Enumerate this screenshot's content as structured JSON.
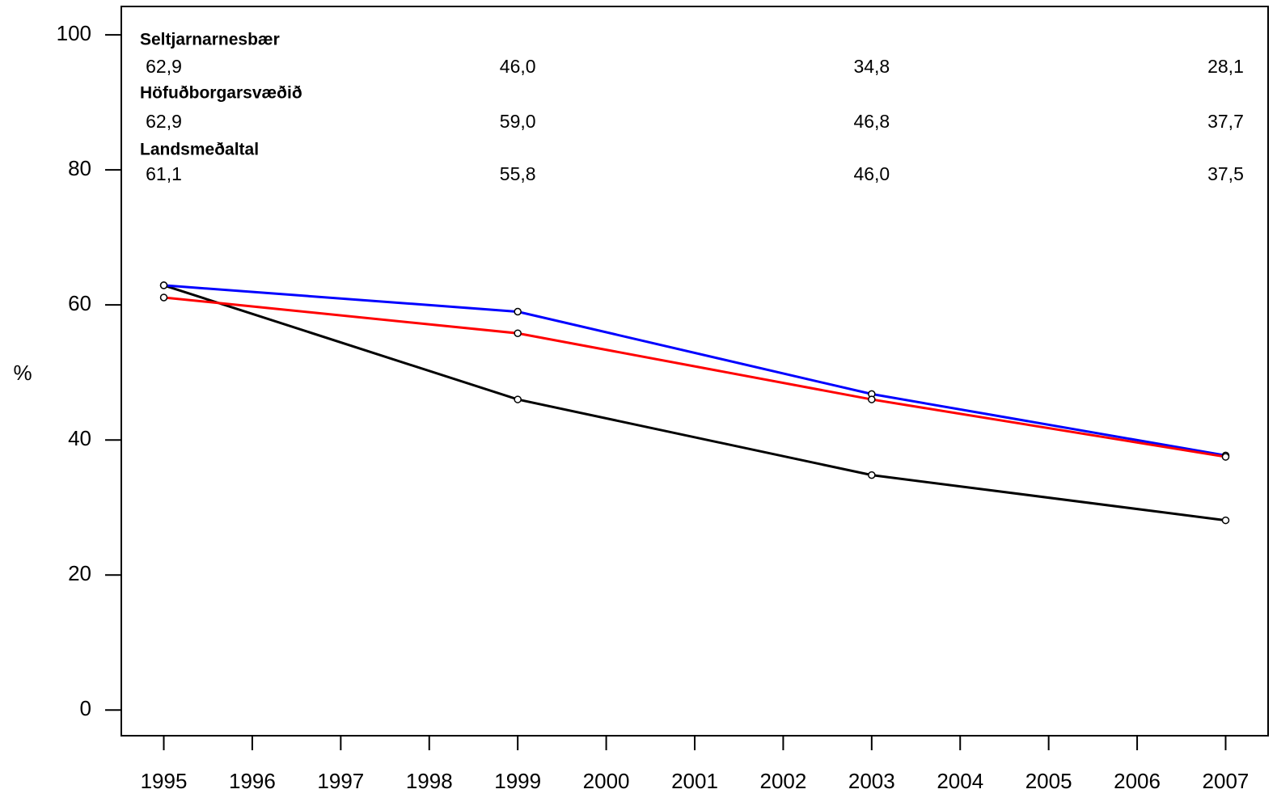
{
  "chart_data": {
    "type": "line",
    "y_label": "%",
    "x": [
      1995,
      1999,
      2003,
      2007
    ],
    "series": [
      {
        "name": "Seltjarnarnesbær",
        "color": "#000000",
        "values": [
          62.9,
          46.0,
          34.8,
          28.1
        ],
        "value_labels": [
          "62,9",
          "46,0",
          "34,8",
          "28,1"
        ]
      },
      {
        "name": "Höfuðborgarsvæðið",
        "color": "#0000ff",
        "values": [
          62.9,
          59.0,
          46.8,
          37.7
        ],
        "value_labels": [
          "62,9",
          "59,0",
          "46,8",
          "37,7"
        ]
      },
      {
        "name": "Landsmeðaltal",
        "color": "#ff0000",
        "values": [
          61.1,
          55.8,
          46.0,
          37.5
        ],
        "value_labels": [
          "61,1",
          "55,8",
          "46,0",
          "37,5"
        ]
      }
    ],
    "xlim": [
      1994.52,
      2007.48
    ],
    "xticks": [
      1995,
      1996,
      1997,
      1998,
      1999,
      2000,
      2001,
      2002,
      2003,
      2004,
      2005,
      2006,
      2007
    ],
    "ylim": [
      -3.8,
      104.2
    ],
    "yticks": [
      0,
      20,
      40,
      60,
      80,
      100
    ]
  }
}
